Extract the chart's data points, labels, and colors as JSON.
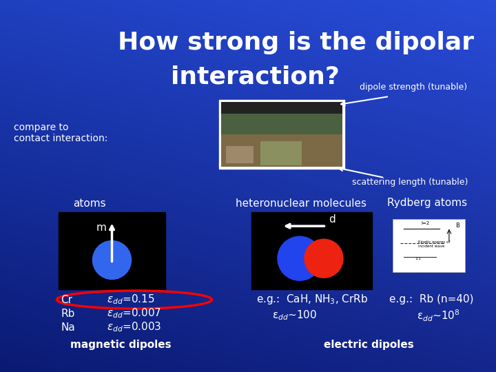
{
  "title_line1": "How strong is the dipolar",
  "title_line2": "interaction?",
  "title_fontsize": 26,
  "title_color": "#FFFFFF",
  "bg_color": "#1144CC",
  "dipole_strength_label": "dipole strength (tunable)",
  "scattering_label": "scattering length (tunable)",
  "compare_label": "compare to\ncontact interaction:",
  "atoms_label": "atoms",
  "hetero_label": "heteronuclear molecules",
  "rydberg_label": "Rydberg atoms",
  "mag_dipoles_label": "magnetic dipoles",
  "elec_dipoles_label": "electric dipoles",
  "cr_label": "Cr",
  "cr_eps": "ε$_{dd}$=0.15",
  "rb_label": "Rb",
  "rb_eps": "ε$_{dd}$=0.007",
  "na_label": "Na",
  "na_eps": "ε$_{dd}$=0.003",
  "hetero_eg": "e.g.:  CaH, NH$_3$, CrRb",
  "hetero_edd": "ε$_{dd}$~100",
  "rydberg_eg": "e.g.:  Rb (n=40)",
  "rydberg_edd": "ε$_{dd}$~10$^8$"
}
